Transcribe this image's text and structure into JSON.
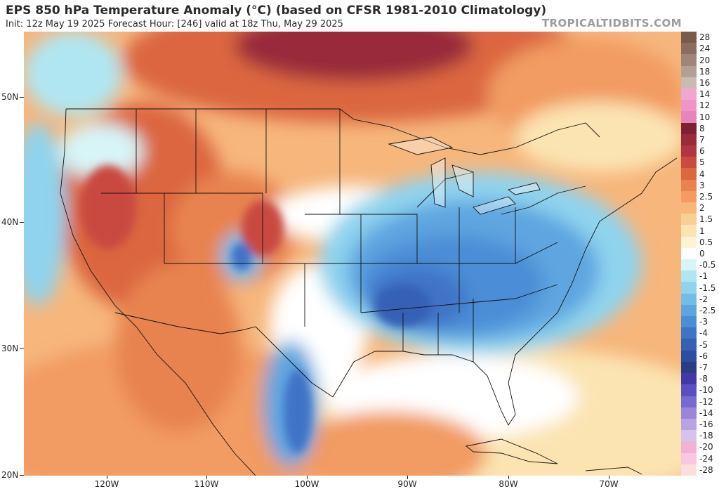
{
  "title": "EPS 850 hPa Temperature Anomaly (°C) (based on CFSR 1981-2010 Climatology)",
  "subtitle": "Init: 12z May 19 2025   Forecast Hour: [246]   valid at 18z Thu, May 29 2025",
  "site": "TROPICALTIDBITS.COM",
  "lat_labels": [
    "50N",
    "40N",
    "30N",
    "20N"
  ],
  "lon_labels": [
    "120W",
    "110W",
    "100W",
    "90W",
    "80W",
    "70W"
  ],
  "colorbar": {
    "labels": [
      "28",
      "24",
      "20",
      "18",
      "16",
      "14",
      "12",
      "10",
      "8",
      "7",
      "6",
      "5",
      "4",
      "3",
      "2.5",
      "2",
      "1.5",
      "1",
      "0.5",
      "0",
      "-0.5",
      "-1",
      "-1.5",
      "-2",
      "-2.5",
      "-3",
      "-4",
      "-5",
      "-6",
      "-7",
      "-8",
      "-10",
      "-12",
      "-14",
      "-16",
      "-18",
      "-20",
      "-24",
      "-28"
    ],
    "colors": [
      "#7a5a4a",
      "#8a6d60",
      "#9f857a",
      "#b59e94",
      "#c9bbb4",
      "#f2a6cf",
      "#ee94c6",
      "#e884b9",
      "#7e1f33",
      "#992a3a",
      "#b23342",
      "#c94a3f",
      "#db6640",
      "#e88350",
      "#f29b62",
      "#f6b67c",
      "#f9cf96",
      "#fbe4b2",
      "#fdf4d6",
      "#ffffff",
      "#d7f4f7",
      "#b0e6f2",
      "#8fd3ee",
      "#72bde8",
      "#5ea5e0",
      "#4c8dd6",
      "#3f73c6",
      "#3560b5",
      "#2c4e9e",
      "#2a3e86",
      "#3f3aa4",
      "#5a4fc0",
      "#7769cf",
      "#9985d9",
      "#b9a4e3",
      "#d6c3ec",
      "#f1b2d6",
      "#f7c8e0",
      "#fbdede"
    ]
  },
  "colors": {
    "warm_core": "#c94a3f",
    "warm_mid": "#e88350",
    "warm_light": "#f9cf96",
    "cold_core": "#3560b5",
    "cold_light": "#8fd3ee",
    "extreme_warm": "#7e1f33"
  }
}
